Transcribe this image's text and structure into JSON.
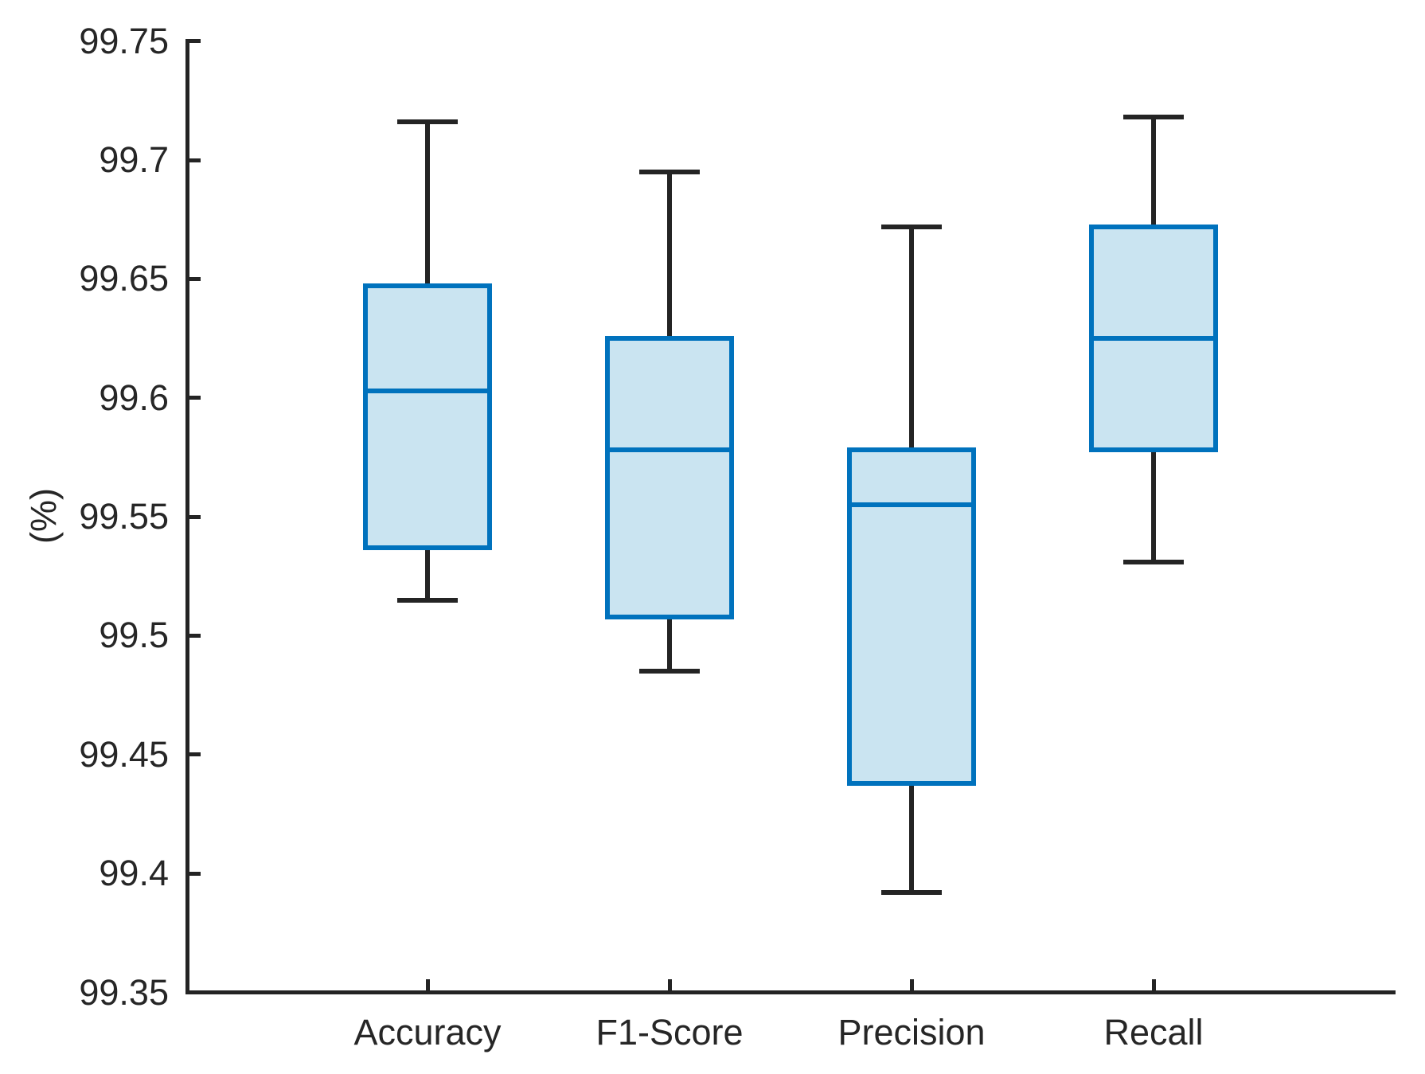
{
  "chart_data": {
    "type": "boxplot",
    "title": "",
    "xlabel": "",
    "ylabel": "(%)",
    "ylim": [
      99.35,
      99.75
    ],
    "grid": false,
    "legend": null,
    "tick_direction": "in",
    "yticks": [
      {
        "value": 99.35,
        "label": "99.35"
      },
      {
        "value": 99.4,
        "label": "99.4"
      },
      {
        "value": 99.45,
        "label": "99.45"
      },
      {
        "value": 99.5,
        "label": "99.5"
      },
      {
        "value": 99.55,
        "label": "99.55"
      },
      {
        "value": 99.6,
        "label": "99.6"
      },
      {
        "value": 99.65,
        "label": "99.65"
      },
      {
        "value": 99.7,
        "label": "99.7"
      },
      {
        "value": 99.75,
        "label": "99.75"
      }
    ],
    "categories": [
      "Accuracy",
      "F1-Score",
      "Precision",
      "Recall"
    ],
    "series": [
      {
        "name": "Accuracy",
        "whisker_low": 99.515,
        "q1": 99.537,
        "median": 99.603,
        "q3": 99.647,
        "whisker_high": 99.716
      },
      {
        "name": "F1-Score",
        "whisker_low": 99.485,
        "q1": 99.508,
        "median": 99.578,
        "q3": 99.625,
        "whisker_high": 99.695
      },
      {
        "name": "Precision",
        "whisker_low": 99.392,
        "q1": 99.438,
        "median": 99.555,
        "q3": 99.578,
        "whisker_high": 99.672
      },
      {
        "name": "Recall",
        "whisker_low": 99.531,
        "q1": 99.578,
        "median": 99.625,
        "q3": 99.672,
        "whisker_high": 99.718
      }
    ],
    "colors": {
      "box_edge": "#0072BD",
      "box_fill": "#CAE4F1",
      "median": "#0072BD",
      "whisker": "#242424",
      "axis": "#242424",
      "text": "#262626"
    }
  }
}
